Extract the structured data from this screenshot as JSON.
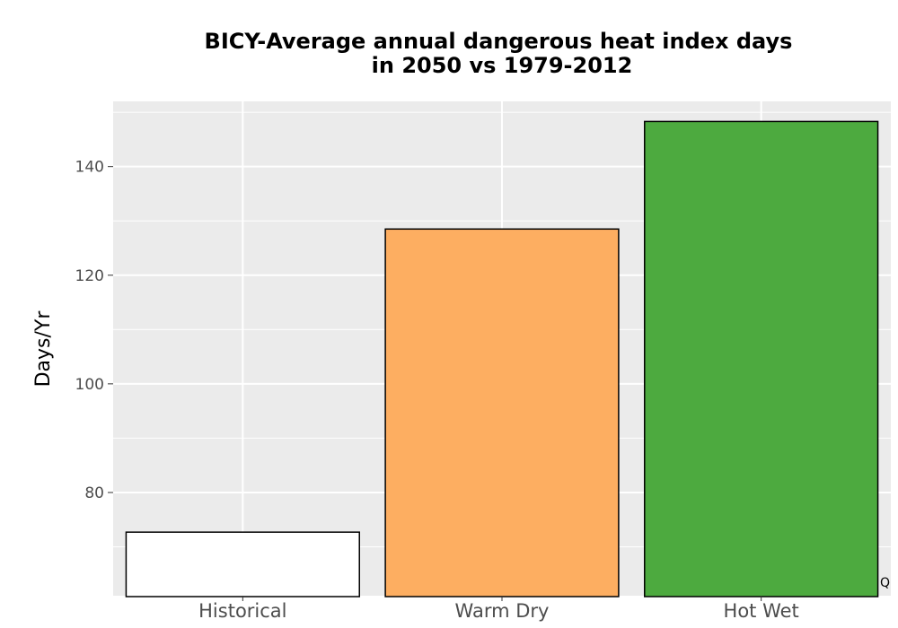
{
  "chart_data": {
    "type": "bar",
    "title_lines": [
      "BICY-Average annual dangerous heat index days",
      "in 2050 vs 1979-2012"
    ],
    "ylabel": "Days/Yr",
    "xlabel": "",
    "categories": [
      "Historical",
      "Warm Dry",
      "Hot Wet"
    ],
    "values": [
      72.7,
      128.5,
      148.3
    ],
    "colors": [
      "#ffffff",
      "#fdae61",
      "#4daa3f"
    ],
    "ylim": [
      61,
      152
    ],
    "yticks": [
      80,
      100,
      120,
      140
    ],
    "grid": true,
    "panel_background": "#ebebeb",
    "corner_mark": "Q"
  }
}
